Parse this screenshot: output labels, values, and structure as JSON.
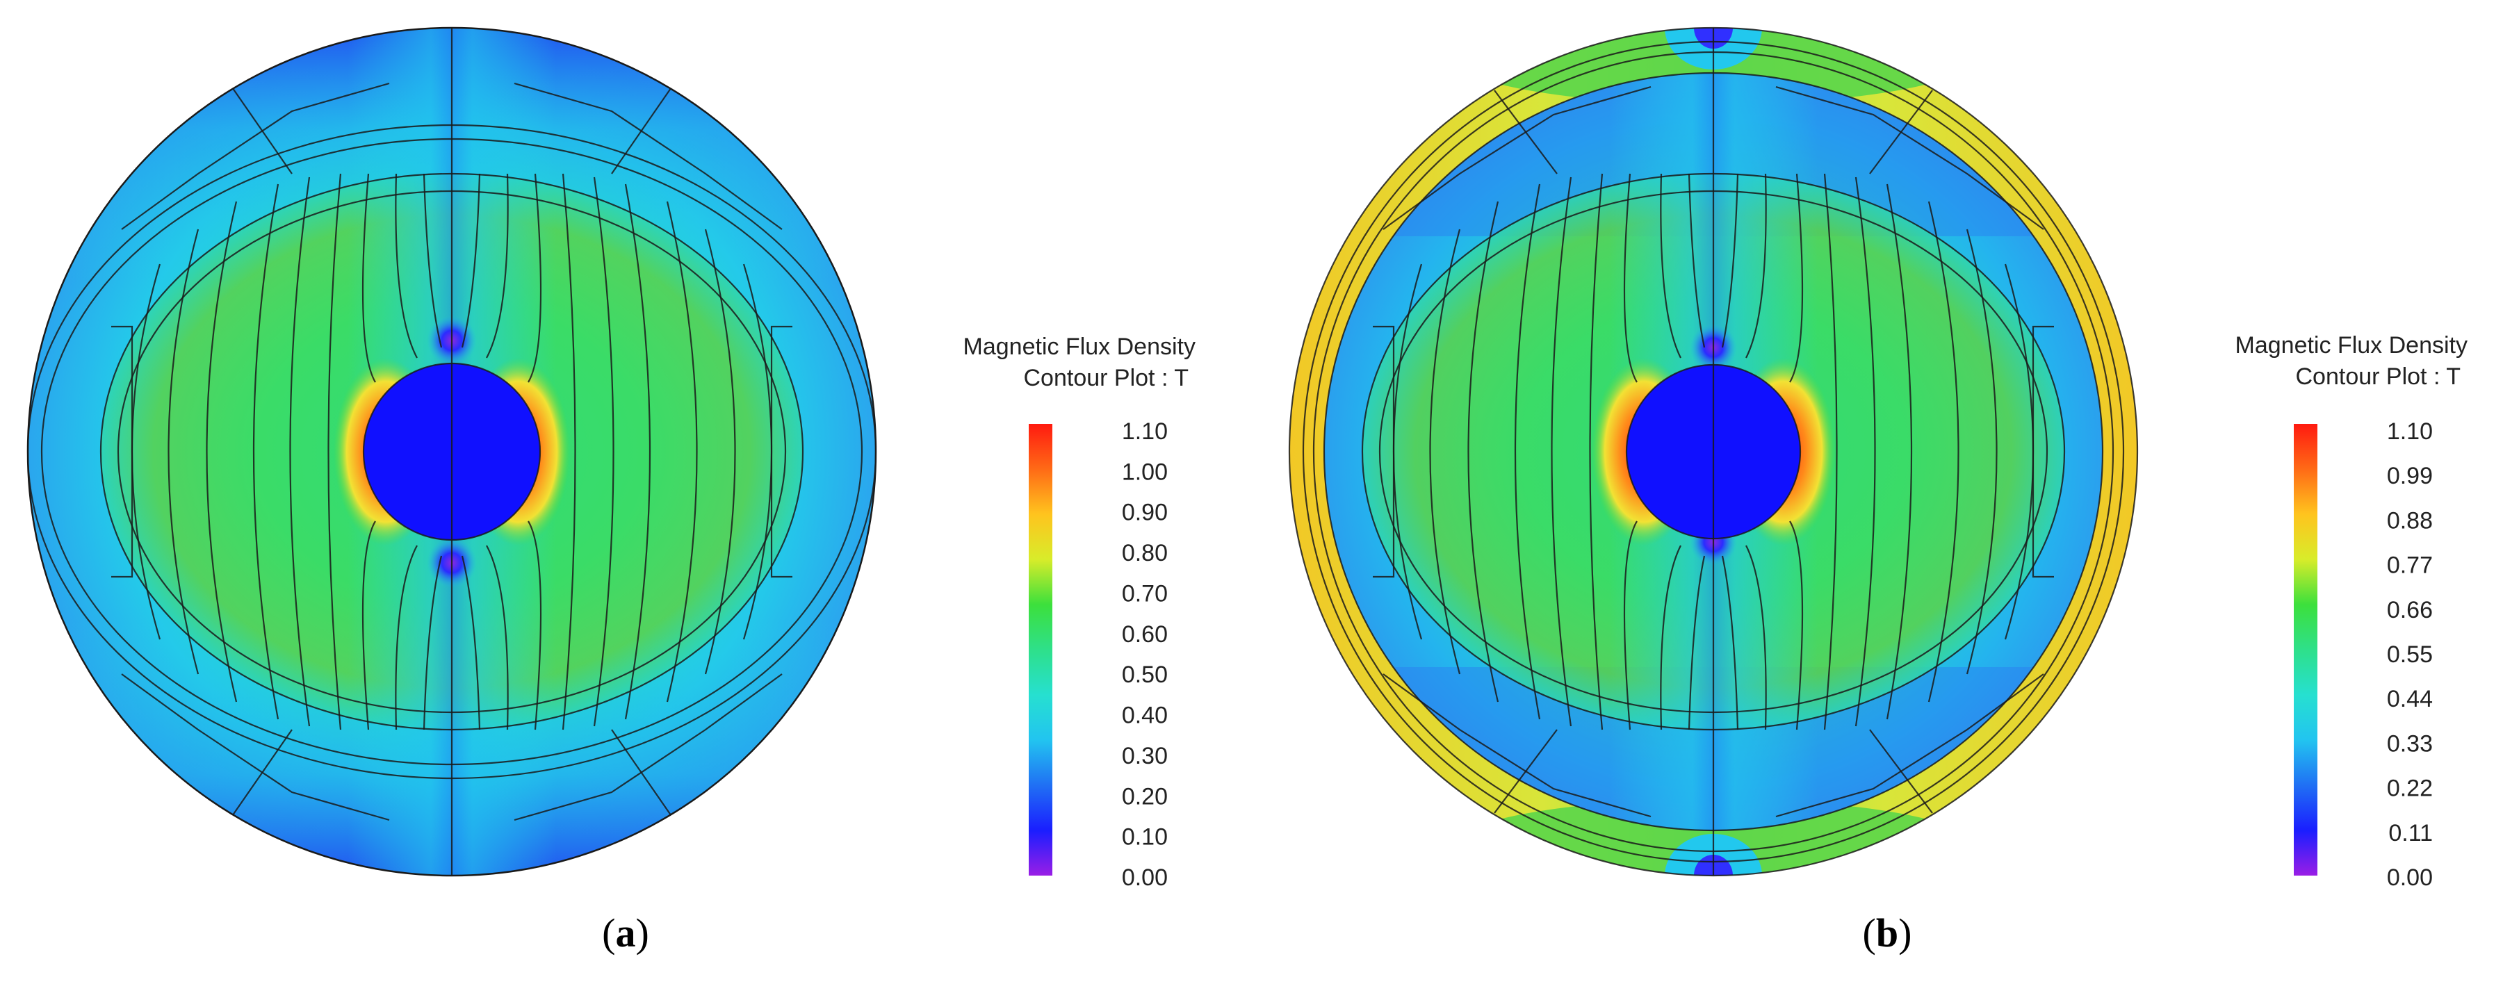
{
  "figures": [
    {
      "id": "a",
      "caption": {
        "open": "(",
        "letter": "a",
        "close": ")"
      },
      "legend": {
        "title_line1": "Magnetic Flux Density",
        "title_line2": "Contour Plot : T",
        "ticks": [
          "1.10",
          "1.00",
          "0.90",
          "0.80",
          "0.70",
          "0.60",
          "0.50",
          "0.40",
          "0.30",
          "0.20",
          "0.10",
          "0.00"
        ]
      }
    },
    {
      "id": "b",
      "caption": {
        "open": "(",
        "letter": "b",
        "close": ")"
      },
      "legend": {
        "title_line1": "Magnetic Flux Density",
        "title_line2": "Contour Plot : T",
        "ticks": [
          "1.10",
          "0.99",
          "0.88",
          "0.77",
          "0.66",
          "0.55",
          "0.44",
          "0.33",
          "0.22",
          "0.11",
          "0.00"
        ]
      }
    }
  ],
  "colors": {
    "outer_blue": "#2a6cf0",
    "cyan": "#22d6e8",
    "green": "#33d84a",
    "yellow": "#f2e234",
    "orange": "#ff8a1a",
    "red": "#ff2a12",
    "deep_blue": "#1015ff",
    "violet": "#8a2be2"
  }
}
